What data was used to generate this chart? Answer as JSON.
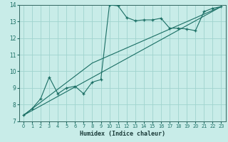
{
  "title": "",
  "xlabel": "Humidex (Indice chaleur)",
  "ylabel": "",
  "bg_color": "#c8ece8",
  "grid_color": "#a0d4ce",
  "line_color": "#1a6e64",
  "xlim": [
    -0.5,
    23.5
  ],
  "ylim": [
    7,
    14
  ],
  "xticks": [
    0,
    1,
    2,
    3,
    4,
    5,
    6,
    7,
    8,
    9,
    10,
    11,
    12,
    13,
    14,
    15,
    16,
    17,
    18,
    19,
    20,
    21,
    22,
    23
  ],
  "yticks": [
    7,
    8,
    9,
    10,
    11,
    12,
    13,
    14
  ],
  "series1_x": [
    0,
    1,
    2,
    3,
    4,
    5,
    6,
    7,
    8,
    9,
    10,
    11,
    12,
    13,
    14,
    15,
    16,
    17,
    18,
    19,
    20,
    21,
    22,
    23
  ],
  "series1_y": [
    7.35,
    7.75,
    8.35,
    9.65,
    8.65,
    9.0,
    9.1,
    8.65,
    9.35,
    9.5,
    14.0,
    13.95,
    13.25,
    13.05,
    13.1,
    13.1,
    13.2,
    12.6,
    12.6,
    12.55,
    12.45,
    13.6,
    13.8,
    13.9
  ],
  "series2_x": [
    0,
    23
  ],
  "series2_y": [
    7.35,
    13.9
  ],
  "series3_x": [
    0,
    8,
    23
  ],
  "series3_y": [
    7.35,
    10.5,
    13.9
  ]
}
